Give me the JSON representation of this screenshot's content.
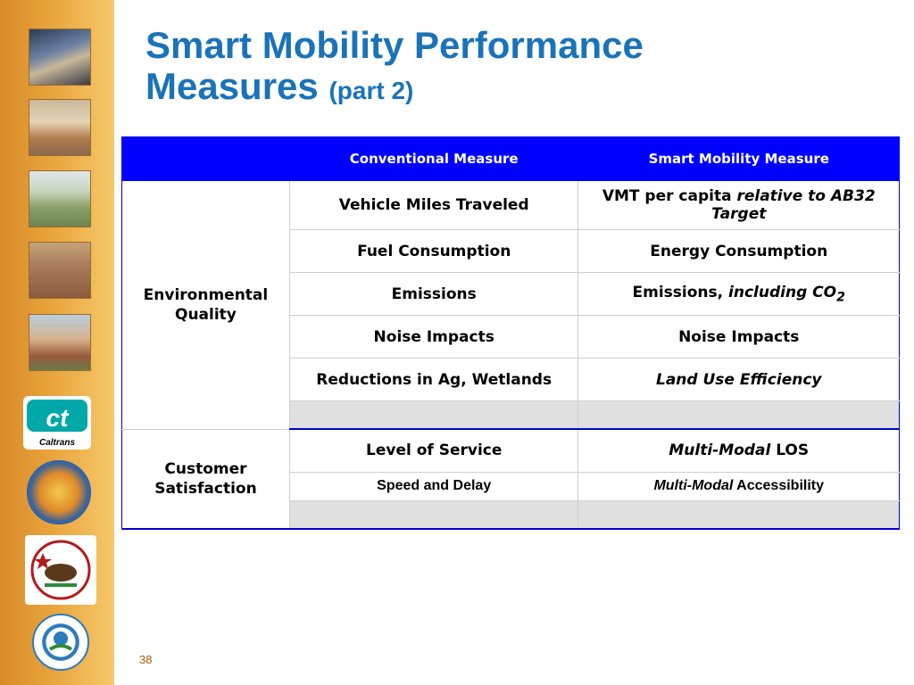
{
  "slide": {
    "title_line1": "Smart Mobility Performance",
    "title_line2": "Measures",
    "title_part": "(part 2)",
    "page_number": "38"
  },
  "sidebar": {
    "logos": [
      "caltrans-logo",
      "hcd-seal",
      "opr-seal",
      "epa-seal"
    ],
    "caltrans_text": "Caltrans"
  },
  "table": {
    "headers": [
      "",
      "Conventional Measure",
      "Smart Mobility Measure"
    ],
    "env_category": "Environmental Quality",
    "env_rows": [
      {
        "conventional": "Vehicle Miles Traveled",
        "smart_a": "VMT per capita ",
        "smart_b": "relative to AB32 Target"
      },
      {
        "conventional": "Fuel Consumption",
        "smart": "Energy Consumption"
      },
      {
        "conventional": "Emissions",
        "smart_a": "Emissions, ",
        "smart_b": "including CO",
        "smart_sub": "2"
      },
      {
        "conventional": "Noise Impacts",
        "smart": "Noise Impacts"
      },
      {
        "conventional": "Reductions in Ag, Wetlands",
        "smart": "Land Use Efficiency"
      }
    ],
    "cust_category": "Customer Satisfaction",
    "cust_rows": [
      {
        "conventional": "Level of Service",
        "smart_a": "Multi-Modal",
        "smart_b": " LOS"
      },
      {
        "conventional": "Speed and Delay",
        "smart_a": "Multi-Modal",
        "smart_b": " Accessibility"
      }
    ]
  }
}
